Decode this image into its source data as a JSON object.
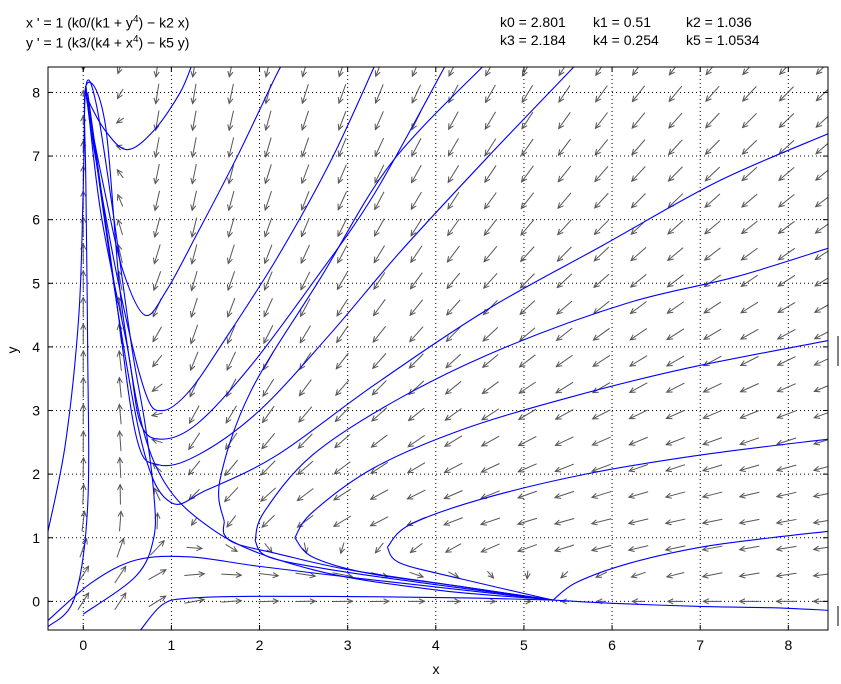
{
  "header": {
    "equations": [
      {
        "pre": "x ' = 1 (k0/(k1 + y",
        "sup": "4",
        "post": ") − k2 x)"
      },
      {
        "pre": "y ' = 1 (k3/(k4 + x",
        "sup": "4",
        "post": ") − k5 y)"
      }
    ],
    "parameters": [
      [
        "k0 = 2.801",
        "k1 = 0.51",
        "k2 = 1.036"
      ],
      [
        "k3 = 2.184",
        "k4 = 0.254",
        "k5 = 1.0534"
      ]
    ]
  },
  "colors": {
    "trajectory": "#0000ff",
    "arrow": "#555555",
    "axis": "#000000",
    "grid": "#000000"
  },
  "chart_data": {
    "type": "scatter",
    "plot_kind": "direction-field-with-trajectories",
    "xlabel": "x",
    "ylabel": "y",
    "xlim": [
      -0.4,
      8.45
    ],
    "ylim": [
      -0.45,
      8.4
    ],
    "xticks": [
      0,
      1,
      2,
      3,
      4,
      5,
      6,
      7,
      8
    ],
    "yticks": [
      0,
      1,
      2,
      3,
      4,
      5,
      6,
      7,
      8
    ],
    "grid": "dotted",
    "parameters": {
      "k0": 2.801,
      "k1": 0.51,
      "k2": 1.036,
      "k3": 2.184,
      "k4": 0.254,
      "k5": 1.0534
    },
    "direction_field": {
      "x_start": 0,
      "x_step": 0.42,
      "y_start": 0,
      "y_step": 0.42
    },
    "equilibrium": [
      5.33,
      0.02
    ],
    "trajectories": [
      [
        [
          -0.4,
          -0.4
        ],
        [
          -0.1,
          0.05
        ],
        [
          0.05,
          1.5
        ],
        [
          0.05,
          4.0
        ],
        [
          0.03,
          6.5
        ],
        [
          0.03,
          8.1
        ],
        [
          0.25,
          7.5
        ],
        [
          0.45,
          4.5
        ],
        [
          0.8,
          2.2
        ],
        [
          1.5,
          1.1
        ],
        [
          2.6,
          0.5
        ],
        [
          4.0,
          0.18
        ],
        [
          5.3,
          0.03
        ]
      ],
      [
        [
          -0.4,
          1.1
        ],
        [
          -0.2,
          2.5
        ],
        [
          -0.05,
          4.5
        ],
        [
          0.0,
          6.5
        ],
        [
          0.03,
          8.1
        ],
        [
          0.15,
          7.8
        ],
        [
          0.35,
          6.0
        ],
        [
          0.55,
          4.0
        ],
        [
          0.7,
          2.8
        ],
        [
          0.8,
          1.7
        ],
        [
          0.8,
          1.0
        ],
        [
          0.6,
          0.4
        ],
        [
          0.0,
          -0.2
        ]
      ],
      [
        [
          0.03,
          8.1
        ],
        [
          0.05,
          7.9
        ],
        [
          0.25,
          7.4
        ],
        [
          0.5,
          7.1
        ],
        [
          0.8,
          7.4
        ],
        [
          1.1,
          8.0
        ],
        [
          1.25,
          8.5
        ]
      ],
      [
        [
          0.03,
          8.1
        ],
        [
          0.05,
          7.8
        ],
        [
          0.25,
          6.4
        ],
        [
          0.45,
          5.2
        ],
        [
          0.7,
          4.5
        ],
        [
          0.95,
          4.9
        ],
        [
          1.3,
          5.8
        ],
        [
          1.75,
          7.0
        ],
        [
          2.2,
          8.3
        ],
        [
          2.3,
          8.5
        ]
      ],
      [
        [
          0.03,
          8.1
        ],
        [
          0.1,
          7.3
        ],
        [
          0.4,
          5.0
        ],
        [
          0.7,
          3.3
        ],
        [
          0.9,
          3.0
        ],
        [
          1.2,
          3.3
        ],
        [
          1.6,
          4.1
        ],
        [
          2.2,
          5.4
        ],
        [
          2.8,
          6.9
        ],
        [
          3.3,
          8.4
        ]
      ],
      [
        [
          0.03,
          8.1
        ],
        [
          0.2,
          6.1
        ],
        [
          0.5,
          4.0
        ],
        [
          0.65,
          2.8
        ],
        [
          0.9,
          2.55
        ],
        [
          1.3,
          2.8
        ],
        [
          1.9,
          3.7
        ],
        [
          2.6,
          5.0
        ],
        [
          3.3,
          6.4
        ],
        [
          4.1,
          8.4
        ]
      ],
      [
        [
          0.05,
          8.0
        ],
        [
          0.35,
          5.0
        ],
        [
          0.6,
          2.6
        ],
        [
          0.85,
          2.15
        ],
        [
          1.3,
          2.3
        ],
        [
          2.0,
          3.0
        ],
        [
          2.8,
          4.2
        ],
        [
          3.6,
          5.5
        ],
        [
          4.6,
          7.0
        ],
        [
          5.6,
          8.45
        ]
      ],
      [
        [
          0.05,
          7.9
        ],
        [
          0.4,
          4.5
        ],
        [
          0.7,
          2.3
        ],
        [
          1.0,
          1.55
        ],
        [
          1.4,
          1.75
        ],
        [
          2.2,
          2.3
        ],
        [
          3.3,
          3.4
        ],
        [
          4.6,
          4.6
        ],
        [
          5.9,
          5.6
        ],
        [
          7.2,
          6.6
        ],
        [
          8.45,
          7.35
        ]
      ],
      [
        [
          1.6,
          1.25
        ],
        [
          1.6,
          1.05
        ],
        [
          1.75,
          0.9
        ],
        [
          2.2,
          0.75
        ],
        [
          3.0,
          0.5
        ],
        [
          4.2,
          0.25
        ],
        [
          5.33,
          0.02
        ]
      ],
      [
        [
          4.6,
          8.5
        ],
        [
          3.5,
          6.9
        ],
        [
          2.7,
          5.1
        ],
        [
          1.9,
          3.3
        ],
        [
          1.55,
          1.9
        ],
        [
          1.6,
          1.25
        ]
      ],
      [
        [
          1.95,
          0.95
        ],
        [
          2.1,
          0.7
        ],
        [
          2.8,
          0.5
        ],
        [
          3.8,
          0.3
        ],
        [
          5.33,
          0.02
        ]
      ],
      [
        [
          1.95,
          0.95
        ],
        [
          2.05,
          1.4
        ],
        [
          2.6,
          2.3
        ],
        [
          3.6,
          3.2
        ],
        [
          4.8,
          4.0
        ],
        [
          6.2,
          4.7
        ],
        [
          7.4,
          5.1
        ],
        [
          8.45,
          5.55
        ]
      ],
      [
        [
          2.4,
          1.0
        ],
        [
          2.6,
          0.7
        ],
        [
          3.2,
          0.45
        ],
        [
          4.2,
          0.25
        ],
        [
          5.33,
          0.02
        ]
      ],
      [
        [
          2.4,
          1.0
        ],
        [
          2.6,
          1.4
        ],
        [
          3.3,
          2.1
        ],
        [
          4.3,
          2.7
        ],
        [
          5.5,
          3.2
        ],
        [
          6.8,
          3.65
        ],
        [
          8.45,
          4.1
        ]
      ],
      [
        [
          3.45,
          0.85
        ],
        [
          3.6,
          0.6
        ],
        [
          4.3,
          0.35
        ],
        [
          5.33,
          0.02
        ]
      ],
      [
        [
          3.45,
          0.85
        ],
        [
          3.7,
          1.2
        ],
        [
          4.5,
          1.6
        ],
        [
          5.7,
          2.0
        ],
        [
          7.0,
          2.3
        ],
        [
          8.45,
          2.55
        ]
      ],
      [
        [
          5.33,
          0.02
        ],
        [
          5.6,
          0.3
        ],
        [
          6.2,
          0.6
        ],
        [
          7.0,
          0.85
        ],
        [
          7.8,
          1.0
        ],
        [
          8.45,
          1.1
        ]
      ],
      [
        [
          -0.4,
          -0.3
        ],
        [
          0.1,
          0.3
        ],
        [
          0.6,
          0.65
        ],
        [
          1.2,
          0.7
        ],
        [
          2.0,
          0.55
        ],
        [
          3.2,
          0.35
        ],
        [
          4.3,
          0.18
        ],
        [
          5.33,
          0.02
        ]
      ],
      [
        [
          0.65,
          -0.45
        ],
        [
          0.9,
          -0.05
        ],
        [
          1.2,
          0.05
        ],
        [
          2.0,
          0.08
        ],
        [
          3.5,
          0.07
        ],
        [
          4.5,
          0.05
        ],
        [
          5.33,
          0.02
        ]
      ],
      [
        [
          5.33,
          0.02
        ],
        [
          6.0,
          -0.03
        ],
        [
          7.0,
          -0.08
        ],
        [
          7.8,
          -0.1
        ],
        [
          8.45,
          -0.14
        ]
      ]
    ]
  }
}
